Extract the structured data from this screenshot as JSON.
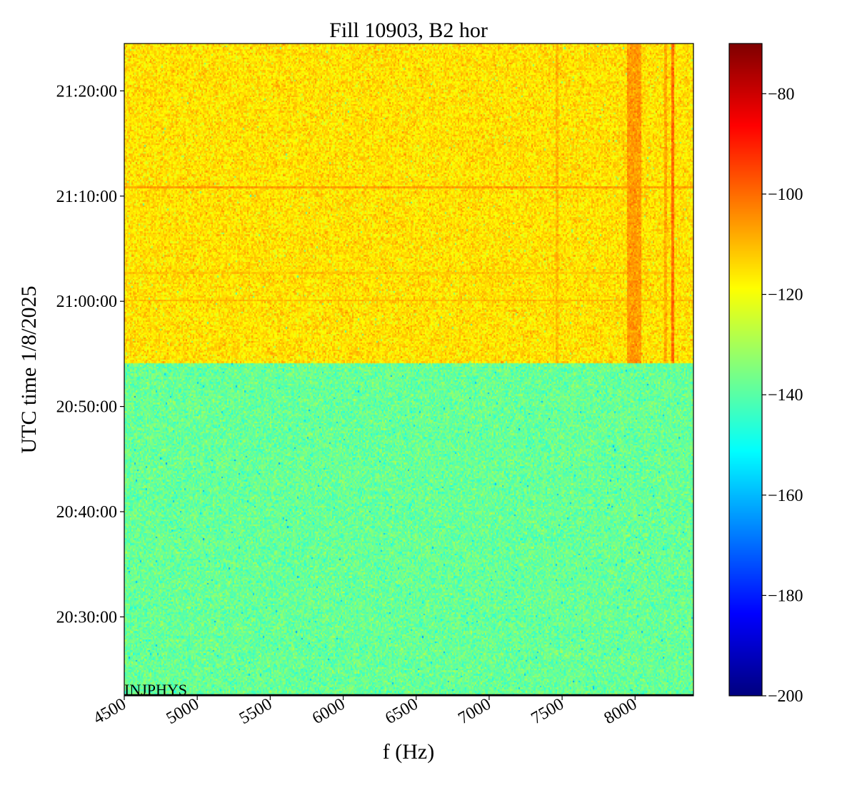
{
  "chart_data": {
    "type": "heatmap",
    "title": "Fill 10903, B2 hor",
    "xlabel": "f (Hz)",
    "ylabel": "UTC time 1/8/2025",
    "annotation": "INJPHYS",
    "xlim": [
      4500,
      8400
    ],
    "x_ticks": [
      4500,
      5000,
      5500,
      6000,
      6500,
      7000,
      7500,
      8000
    ],
    "x_tick_labels": [
      "4500",
      "5000",
      "5500",
      "6000",
      "6500",
      "7000",
      "7500",
      "8000"
    ],
    "ylim": [
      "20:22:30",
      "21:24:30"
    ],
    "y_ticks": [
      "20:30:00",
      "20:40:00",
      "20:50:00",
      "21:00:00",
      "21:10:00",
      "21:20:00"
    ],
    "y_tick_labels": [
      "20:30:00",
      "20:40:00",
      "20:50:00",
      "21:00:00",
      "21:10:00",
      "21:20:00"
    ],
    "colormap": "jet",
    "color_range": [
      -200,
      -70
    ],
    "colorbar_ticks": [
      -80,
      -100,
      -120,
      -140,
      -160,
      -180,
      -200
    ],
    "colorbar_tick_labels": [
      "−80",
      "−100",
      "−120",
      "−140",
      "−160",
      "−180",
      "−200"
    ],
    "regions": [
      {
        "time_start": "20:22:30",
        "time_end": "20:54:10",
        "level_db": -138
      },
      {
        "time_start": "20:54:10",
        "time_end": "21:24:30",
        "level_db": -115
      }
    ],
    "horizontal_features": [
      {
        "time": "21:10:55",
        "level_db": -106
      },
      {
        "time": "21:00:05",
        "level_db": -110
      },
      {
        "time": "21:02:40",
        "level_db": -112
      }
    ],
    "vertical_features": [
      {
        "f_start": 7950,
        "f_end": 8030,
        "level_db": -106,
        "time_start": "20:54:10"
      },
      {
        "f_start": 8200,
        "f_end": 8205,
        "level_db": -108,
        "time_start": "20:54:10"
      },
      {
        "f_start": 8245,
        "f_end": 8255,
        "level_db": -100,
        "time_start": "20:54:10"
      },
      {
        "f_start": 7460,
        "f_end": 7468,
        "level_db": -110,
        "time_start": "20:54:10"
      }
    ]
  }
}
